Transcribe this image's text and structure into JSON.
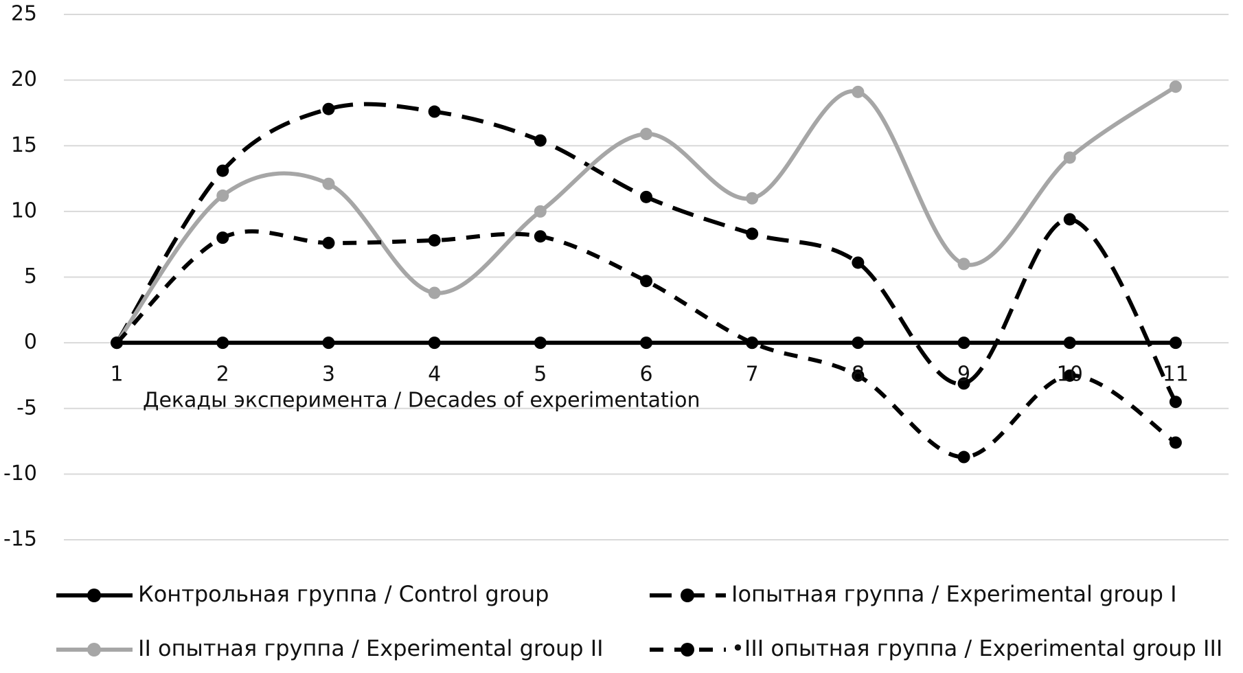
{
  "chart_data": {
    "type": "line",
    "x_label": "Декады эксперимента / Decades of experimentation",
    "categories": [
      "1",
      "2",
      "3",
      "4",
      "5",
      "6",
      "7",
      "8",
      "9",
      "10",
      "11"
    ],
    "series": [
      {
        "name": "Контрольная группа / Control group",
        "color": "#000000",
        "line_style": "solid",
        "smooth": false,
        "values": [
          0,
          0,
          0,
          0,
          0,
          0,
          0,
          0,
          0,
          0,
          0
        ]
      },
      {
        "name": "Iопытная группа / Experimental group I",
        "color": "#000000",
        "line_style": "long-dash",
        "smooth": true,
        "values": [
          0,
          13.1,
          17.8,
          17.6,
          15.4,
          11.1,
          8.3,
          6.1,
          -3.1,
          9.4,
          -4.5
        ]
      },
      {
        "name": "II опытная группа / Experimental group II",
        "color": "#a6a6a6",
        "line_style": "solid",
        "smooth": true,
        "values": [
          0,
          11.2,
          12.1,
          3.8,
          10,
          15.9,
          11,
          19.1,
          6,
          14.1,
          19.5
        ]
      },
      {
        "name": "•III опытная группа / Experimental group III",
        "color": "#000000",
        "line_style": "dash",
        "smooth": true,
        "values": [
          0,
          8,
          7.6,
          7.8,
          8.1,
          4.7,
          0,
          -2.5,
          -8.7,
          -2.5,
          -7.6
        ]
      }
    ],
    "ylim": [
      -15,
      25
    ],
    "yticks": [
      -15,
      -10,
      -5,
      0,
      5,
      10,
      15,
      20,
      25
    ],
    "grid": true,
    "legend": "bottom"
  }
}
